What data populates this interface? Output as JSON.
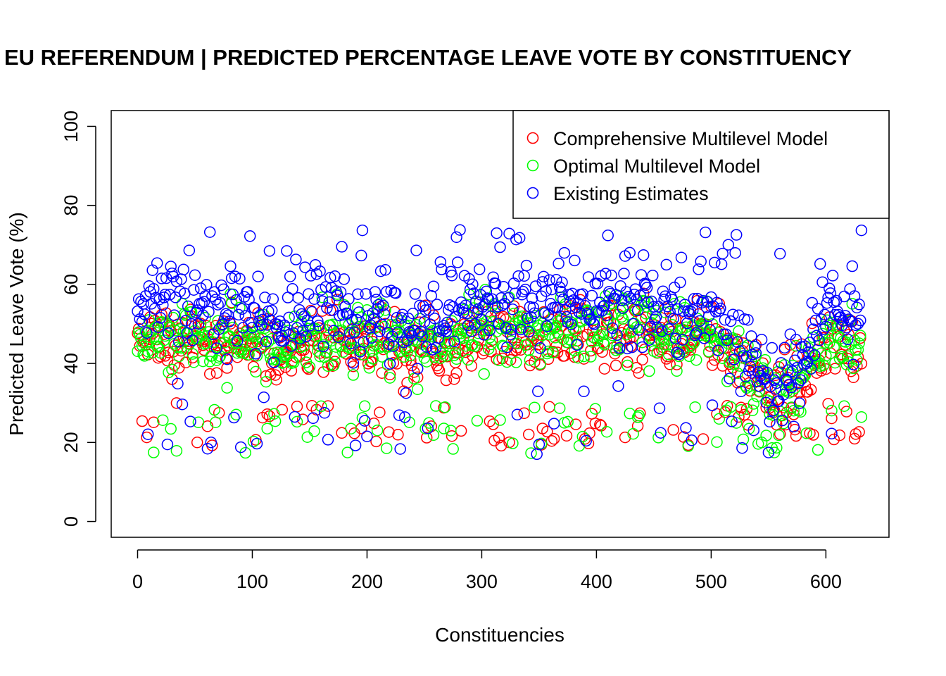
{
  "chart_data": {
    "type": "scatter",
    "title": "EU REFERENDUM | PREDICTED PERCENTAGE LEAVE VOTE BY CONSTITUENCY",
    "xlabel": "Constituencies",
    "ylabel": "Predicted Leave Vote (%)",
    "xlim": [
      -23,
      655
    ],
    "ylim": [
      -4,
      104
    ],
    "xticks": [
      0,
      100,
      200,
      300,
      400,
      500,
      600
    ],
    "yticks": [
      0,
      20,
      40,
      60,
      80,
      100
    ],
    "legend_position": "top-right",
    "n_points": 632,
    "series": [
      {
        "name": "Comprehensive Multilevel Model",
        "color": "#ff0000",
        "marker": "open-circle",
        "anchors": [
          [
            0,
            48
          ],
          [
            50,
            46
          ],
          [
            100,
            44
          ],
          [
            150,
            45
          ],
          [
            200,
            47
          ],
          [
            250,
            43
          ],
          [
            300,
            48
          ],
          [
            350,
            47
          ],
          [
            400,
            49
          ],
          [
            450,
            47
          ],
          [
            500,
            47
          ],
          [
            540,
            36
          ],
          [
            560,
            30
          ],
          [
            580,
            36
          ],
          [
            600,
            44
          ],
          [
            632,
            45
          ]
        ],
        "spread": 7,
        "low_outlier_rate": 0.12,
        "low_outlier_range": [
          19,
          30
        ]
      },
      {
        "name": "Optimal Multilevel Model",
        "color": "#00ff00",
        "marker": "open-circle",
        "anchors": [
          [
            0,
            48
          ],
          [
            50,
            47
          ],
          [
            100,
            45
          ],
          [
            150,
            46
          ],
          [
            200,
            48
          ],
          [
            250,
            44
          ],
          [
            300,
            49
          ],
          [
            350,
            48
          ],
          [
            400,
            50
          ],
          [
            450,
            48
          ],
          [
            500,
            48
          ],
          [
            540,
            37
          ],
          [
            560,
            31
          ],
          [
            580,
            36
          ],
          [
            600,
            46
          ],
          [
            632,
            47
          ]
        ],
        "spread": 7,
        "low_outlier_rate": 0.11,
        "low_outlier_range": [
          17,
          30
        ]
      },
      {
        "name": "Existing Estimates",
        "color": "#0000ff",
        "marker": "open-circle",
        "anchors": [
          [
            0,
            56
          ],
          [
            50,
            55
          ],
          [
            100,
            53
          ],
          [
            150,
            53
          ],
          [
            200,
            53
          ],
          [
            250,
            50
          ],
          [
            300,
            55
          ],
          [
            350,
            56
          ],
          [
            400,
            56
          ],
          [
            450,
            55
          ],
          [
            500,
            53
          ],
          [
            540,
            40
          ],
          [
            560,
            32
          ],
          [
            580,
            39
          ],
          [
            600,
            54
          ],
          [
            632,
            54
          ]
        ],
        "spread": 8,
        "low_outlier_rate": 0.06,
        "low_outlier_range": [
          17,
          35
        ]
      }
    ]
  }
}
